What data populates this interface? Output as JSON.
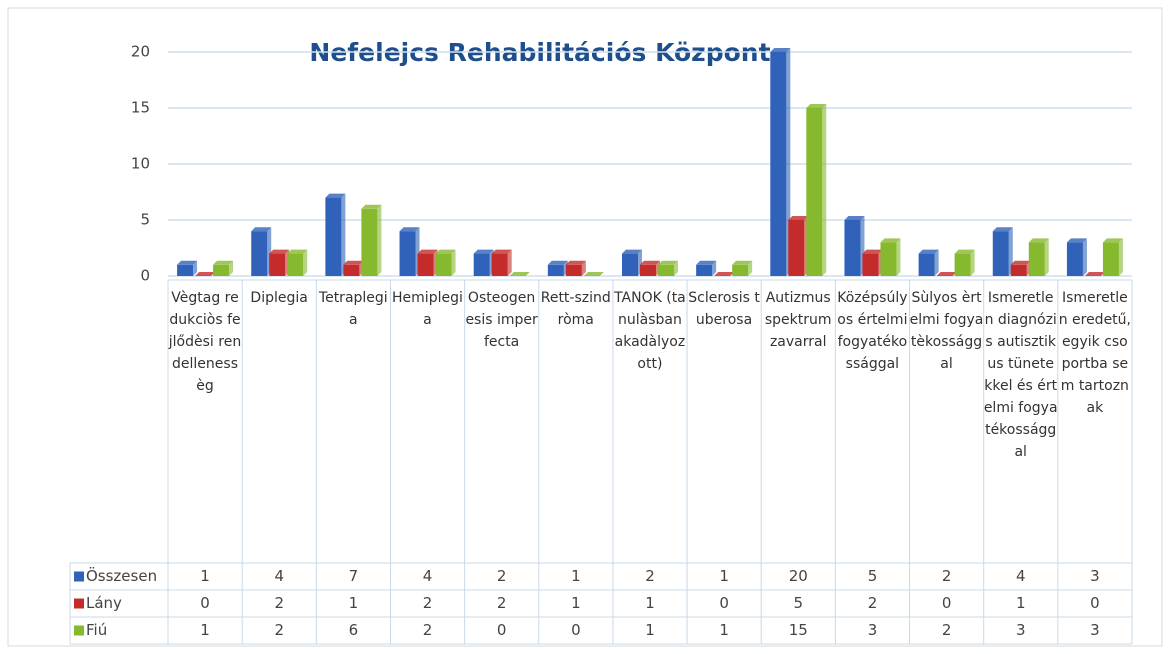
{
  "chart_data": {
    "type": "bar",
    "title": "Nefelejcs Rehabilitációs Központ",
    "categories": [
      "Vègtag redukciòs fejlődèsi rendellenessèg",
      "Diplegia",
      "Tetraplegia",
      "Hemiplegia",
      "Osteogenesis imperfecta",
      "Rett-szindròma",
      "TANOK (tanulàsban akadàlyozott)",
      "Sclerosis tuberosa",
      "Autizmus spektrum zavarral",
      "Középsúlyos értelmi fogyatékossággal",
      "Sùlyos èrtelmi fogyatèkossággal",
      "Ismeretlen diagnózis autisztikus tünetekkel és értelmi fogyatékossággal",
      "Ismeretlen eredetű, egyik csoportba sem tartoznak"
    ],
    "series": [
      {
        "name": "Összesen",
        "color": "#2f62b8",
        "values": [
          1,
          4,
          7,
          4,
          2,
          1,
          2,
          1,
          20,
          5,
          2,
          4,
          3
        ]
      },
      {
        "name": "Lány",
        "color": "#c42b2b",
        "values": [
          0,
          2,
          1,
          2,
          2,
          1,
          1,
          0,
          5,
          2,
          0,
          1,
          0
        ]
      },
      {
        "name": "Fiú",
        "color": "#86b92e",
        "values": [
          1,
          2,
          6,
          2,
          0,
          0,
          1,
          1,
          15,
          3,
          2,
          3,
          3
        ]
      }
    ],
    "ylim": [
      0,
      20
    ],
    "yticks": [
      0,
      5,
      10,
      15,
      20
    ],
    "grid": true
  }
}
